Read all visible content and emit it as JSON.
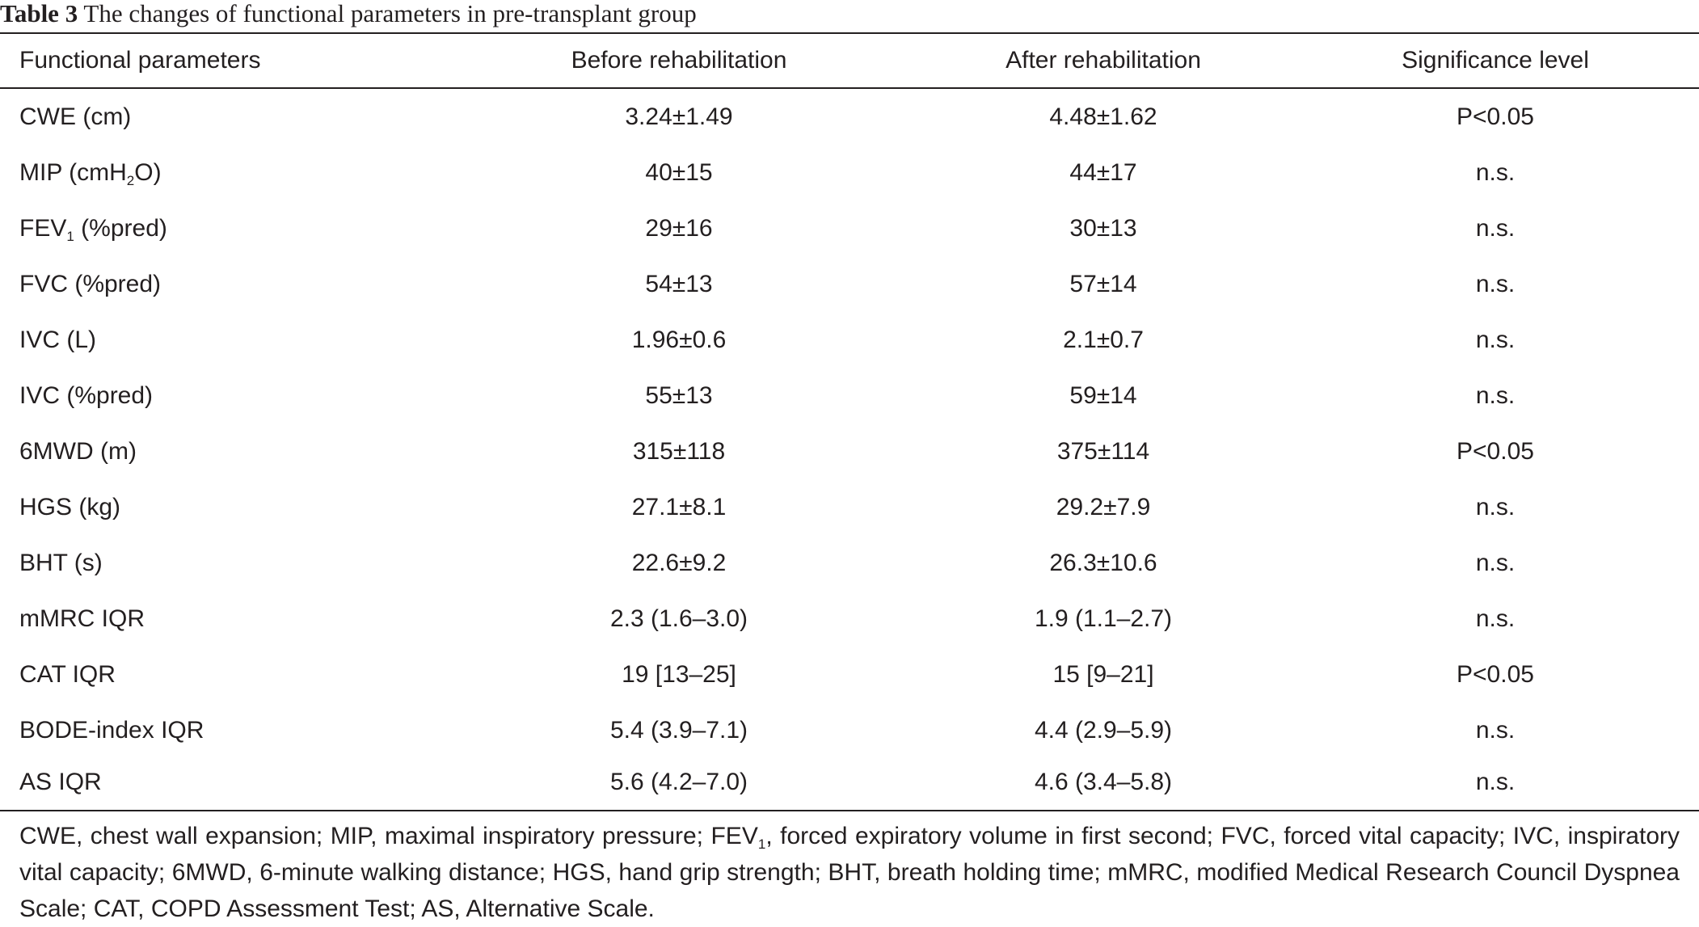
{
  "caption": {
    "label": "Table 3",
    "text": " The changes of functional parameters in pre-transplant group"
  },
  "table": {
    "headers": [
      "Functional parameters",
      "Before rehabilitation",
      "After rehabilitation",
      "Significance level"
    ],
    "rows": [
      {
        "param": "CWE (cm)",
        "before": "3.24±1.49",
        "after": "4.48±1.62",
        "sig": "P<0.05"
      },
      {
        "param_pre": "MIP (cmH",
        "param_sub": "2",
        "param_post": "O)",
        "before": "40±15",
        "after": "44±17",
        "sig": "n.s."
      },
      {
        "param_pre": "FEV",
        "param_sub": "1",
        "param_post": " (%pred)",
        "before": "29±16",
        "after": "30±13",
        "sig": "n.s."
      },
      {
        "param": "FVC (%pred)",
        "before": "54±13",
        "after": "57±14",
        "sig": "n.s."
      },
      {
        "param": "IVC (L)",
        "before": "1.96±0.6",
        "after": "2.1±0.7",
        "sig": "n.s."
      },
      {
        "param": "IVC (%pred)",
        "before": "55±13",
        "after": "59±14",
        "sig": "n.s."
      },
      {
        "param": "6MWD (m)",
        "before": "315±118",
        "after": "375±114",
        "sig": "P<0.05"
      },
      {
        "param": "HGS (kg)",
        "before": "27.1±8.1",
        "after": "29.2±7.9",
        "sig": "n.s."
      },
      {
        "param": "BHT (s)",
        "before": "22.6±9.2",
        "after": "26.3±10.6",
        "sig": "n.s."
      },
      {
        "param": "mMRC IQR",
        "before": "2.3 (1.6–3.0)",
        "after": "1.9 (1.1–2.7)",
        "sig": "n.s."
      },
      {
        "param": "CAT IQR",
        "before": "19 [13–25]",
        "after": "15 [9–21]",
        "sig": "P<0.05"
      },
      {
        "param": "BODE-index IQR",
        "before": "5.4 (3.9–7.1)",
        "after": "4.4 (2.9–5.9)",
        "sig": "n.s."
      },
      {
        "param": "AS IQR",
        "before": "5.6 (4.2–7.0)",
        "after": "4.6 (3.4–5.8)",
        "sig": "n.s."
      }
    ]
  },
  "footnote": {
    "part1": "CWE, chest wall expansion; MIP, maximal inspiratory pressure; FEV",
    "sub": "1",
    "part2": ", forced expiratory volume in first second; FVC, forced vital capacity; IVC, inspiratory vital capacity; 6MWD, 6-minute walking distance; HGS, hand grip strength; BHT, breath holding time; mMRC, modified Medical Research Council Dyspnea Scale; CAT, COPD Assessment Test; AS, Alternative Scale."
  }
}
